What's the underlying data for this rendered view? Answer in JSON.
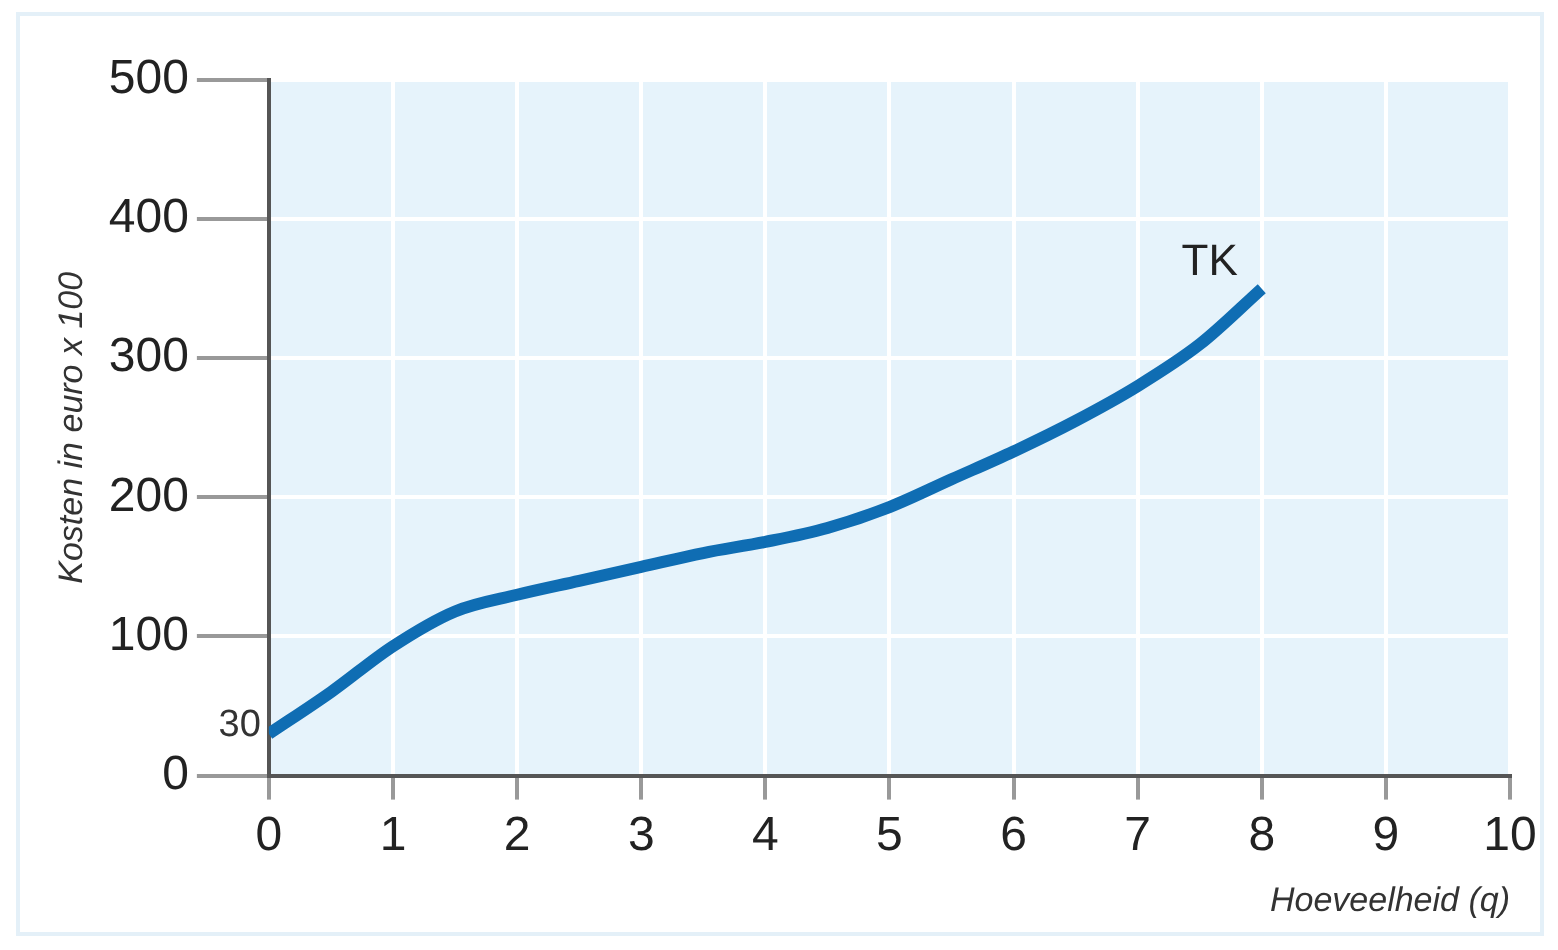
{
  "chart_data": {
    "type": "line",
    "xlabel": "Hoeveelheid (q)",
    "ylabel": "Kosten in euro x 100",
    "x": [
      0,
      0.5,
      1,
      1.5,
      2,
      2.5,
      3,
      3.5,
      4,
      4.5,
      5,
      5.5,
      6,
      6.5,
      7,
      7.5,
      8
    ],
    "series": [
      {
        "name": "TK",
        "color": "#0f6db3",
        "values": [
          30,
          60,
          93,
          118,
          130,
          140,
          150,
          160,
          168,
          178,
          193,
          213,
          233,
          255,
          280,
          310,
          350
        ]
      }
    ],
    "xlim": [
      0,
      10
    ],
    "xticks": [
      0,
      1,
      2,
      3,
      4,
      5,
      6,
      7,
      8,
      9,
      10
    ],
    "ylim": [
      0,
      500
    ],
    "yticks": [
      0,
      100,
      200,
      300,
      400,
      500
    ],
    "annotations": [
      {
        "text": "30",
        "x": 0,
        "y": 30
      }
    ],
    "grid": true,
    "legend": false,
    "marker": "none",
    "line_style": "solid"
  }
}
